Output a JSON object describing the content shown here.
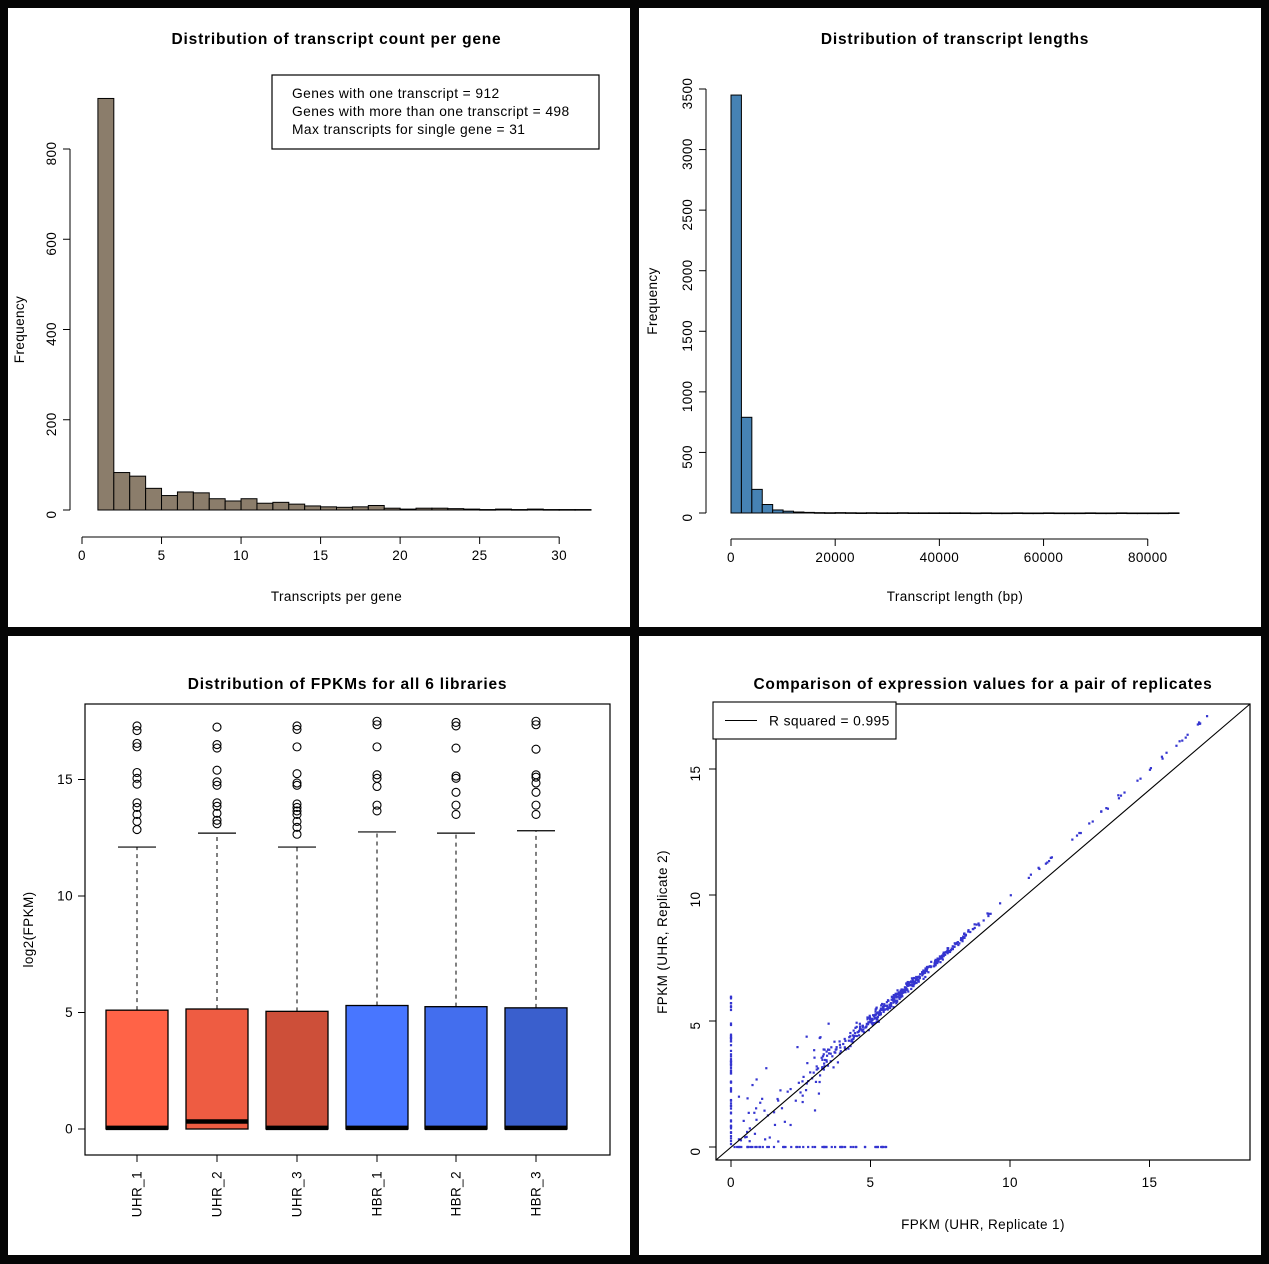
{
  "figure": {
    "background": "#050505",
    "panel_background": "#ffffff"
  },
  "chart_data": [
    {
      "id": "transcript-count-histogram",
      "type": "bar",
      "title": "Distribution of transcript count per gene",
      "xlabel": "Transcripts per gene",
      "ylabel": "Frequency",
      "bar_color": "#8B7D6B",
      "bar_edge_color": "#000000",
      "x_start": 1,
      "bin_width": 1,
      "values": [
        912,
        83,
        75,
        48,
        32,
        40,
        38,
        25,
        20,
        25,
        15,
        17,
        13,
        9,
        7,
        6,
        7,
        10,
        4,
        2,
        4,
        4,
        3,
        2,
        1,
        2,
        1,
        2,
        1,
        1,
        1
      ],
      "xticks": [
        0,
        5,
        10,
        15,
        20,
        25,
        30
      ],
      "yticks": [
        0,
        200,
        400,
        600,
        800
      ],
      "xlim": [
        0,
        32
      ],
      "ylim": [
        0,
        920
      ],
      "y_tick_label_rotated": true,
      "grid": false,
      "legend_position": "top-right",
      "annotation_box": {
        "lines": [
          "Genes with one transcript = 912",
          "Genes with more than one transcript = 498",
          "Max transcripts for single gene =  31"
        ]
      }
    },
    {
      "id": "transcript-length-histogram",
      "type": "bar",
      "title": "Distribution of transcript lengths",
      "xlabel": "Transcript length (bp)",
      "ylabel": "Frequency",
      "bar_color": "#4682B4",
      "bar_edge_color": "#000000",
      "x_start": 0,
      "bin_width": 2000,
      "values": [
        3450,
        790,
        195,
        70,
        25,
        15,
        8,
        5,
        3,
        2,
        3,
        2,
        1,
        2,
        1,
        1,
        2,
        1,
        1,
        1,
        1,
        1,
        1,
        0,
        1,
        0,
        0,
        1,
        0,
        0,
        1,
        0,
        0,
        0,
        1,
        0,
        0,
        1,
        0,
        0,
        0,
        0,
        1
      ],
      "xticks": [
        0,
        20000,
        40000,
        60000,
        80000
      ],
      "yticks": [
        0,
        500,
        1000,
        1500,
        2000,
        2500,
        3000,
        3500
      ],
      "xlim": [
        0,
        86000
      ],
      "ylim": [
        0,
        3500
      ],
      "y_tick_label_rotated": true,
      "grid": false
    },
    {
      "id": "fpkm-boxplot",
      "type": "boxplot",
      "title": "Distribution of FPKMs for all 6 libraries",
      "xlabel": "",
      "ylabel": "log2(FPKM)",
      "yticks": [
        0,
        5,
        10,
        15
      ],
      "ylim": [
        -1.1,
        18.3
      ],
      "y_tick_label_rotated": false,
      "grid": false,
      "boxes": [
        {
          "label": "UHR_1",
          "color": "#FF6347",
          "q1": 0,
          "median": 0.05,
          "q3": 5.1,
          "whisker_low": 0,
          "whisker_high": 12.1,
          "outliers": [
            12.85,
            13.2,
            13.5,
            13.8,
            14.0,
            14.8,
            15.05,
            15.3,
            16.4,
            16.55,
            17.1,
            17.3
          ]
        },
        {
          "label": "UHR_2",
          "color": "#EE5C42",
          "q1": 0,
          "median": 0.32,
          "q3": 5.15,
          "whisker_low": 0,
          "whisker_high": 12.7,
          "outliers": [
            13.1,
            13.25,
            13.55,
            13.85,
            14.0,
            14.75,
            14.9,
            15.4,
            16.35,
            16.5,
            17.25
          ]
        },
        {
          "label": "UHR_3",
          "color": "#CD4F39",
          "q1": 0,
          "median": 0.05,
          "q3": 5.05,
          "whisker_low": 0,
          "whisker_high": 12.1,
          "outliers": [
            12.65,
            12.95,
            13.2,
            13.5,
            13.65,
            13.8,
            13.95,
            14.75,
            14.85,
            15.25,
            16.4,
            17.15,
            17.3
          ]
        },
        {
          "label": "HBR_1",
          "color": "#4876FF",
          "q1": 0,
          "median": 0.05,
          "q3": 5.3,
          "whisker_low": 0,
          "whisker_high": 12.75,
          "outliers": [
            13.65,
            13.9,
            14.7,
            15.05,
            15.2,
            16.4,
            17.35,
            17.5
          ]
        },
        {
          "label": "HBR_2",
          "color": "#436EEE",
          "q1": 0,
          "median": 0.05,
          "q3": 5.25,
          "whisker_low": 0,
          "whisker_high": 12.7,
          "outliers": [
            13.5,
            13.9,
            14.45,
            15.05,
            15.15,
            16.35,
            17.3,
            17.45
          ]
        },
        {
          "label": "HBR_3",
          "color": "#3A5FCD",
          "q1": 0,
          "median": 0.05,
          "q3": 5.2,
          "whisker_low": 0,
          "whisker_high": 12.8,
          "outliers": [
            13.5,
            13.9,
            14.45,
            14.85,
            15.1,
            15.2,
            16.3,
            17.35,
            17.5
          ]
        }
      ]
    },
    {
      "id": "replicate-scatter",
      "type": "scatter",
      "title": "Comparison of expression values for a pair of replicates",
      "xlabel": "FPKM (UHR, Replicate 1)",
      "ylabel": "FPKM (UHR, Replicate 2)",
      "xticks": [
        0,
        5,
        10,
        15
      ],
      "yticks": [
        0,
        5,
        10,
        15
      ],
      "xlim": [
        -0.6,
        18.4
      ],
      "ylim": [
        -0.6,
        17.7
      ],
      "y_tick_label_rotated": true,
      "point_color": "#3535D0",
      "line_color": "#000000",
      "identity_line": true,
      "legend": {
        "label": "R squared = 0.995"
      },
      "point_clusters": {
        "seed": 420024,
        "diagonal_band": {
          "n": 430,
          "x_min": 2.0,
          "x_span": 7.6,
          "noise_base": 2.3,
          "noise_decay": 2.6,
          "noise_floor": 0.07
        },
        "high_tail": {
          "n": 42,
          "x_min": 9.5,
          "x_span": 7.8,
          "noise": 0.1
        },
        "low_cloud": {
          "n": 62,
          "x_max": 3.6,
          "noise": 2.2
        },
        "zero_x_column": {
          "n": 60,
          "y_max": 6.0
        },
        "zero_y_row": {
          "n": 48,
          "x_min": 0.3,
          "x_max": 5.6
        }
      }
    }
  ]
}
